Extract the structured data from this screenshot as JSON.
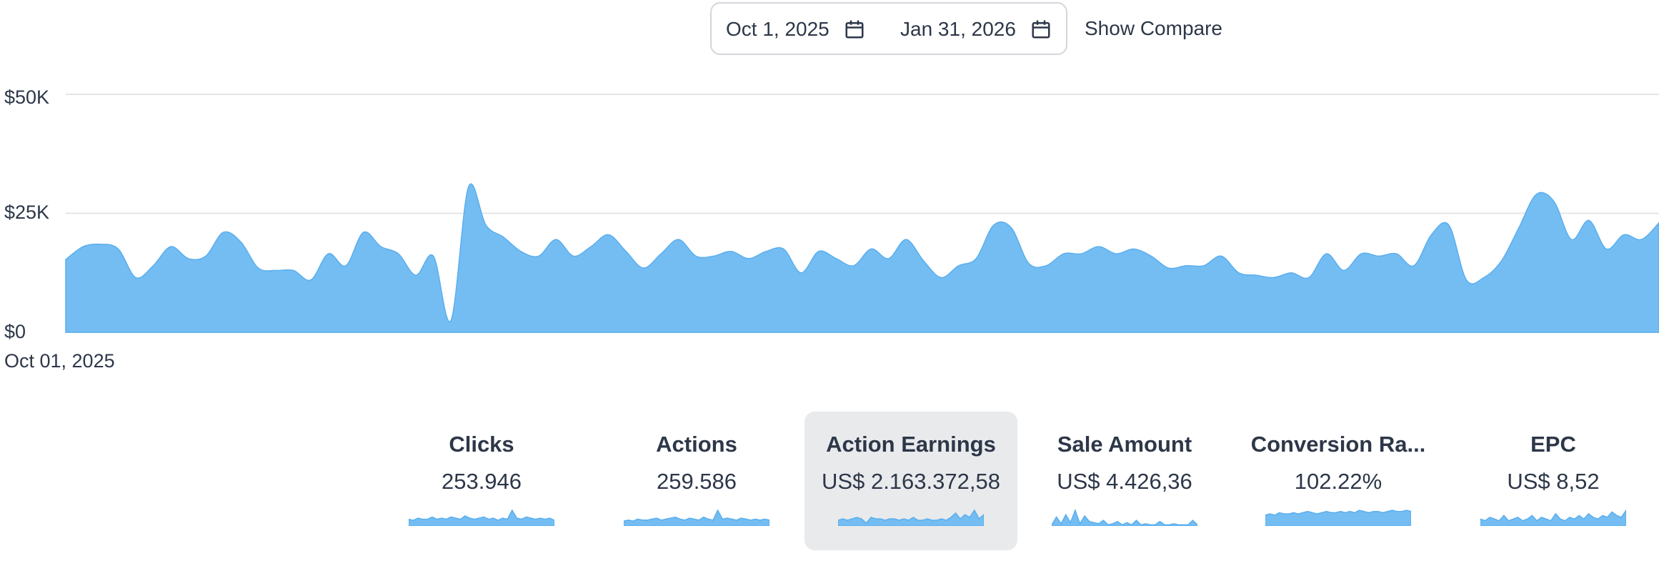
{
  "date_range": {
    "start": "Oct 1, 2025",
    "end": "Jan 31, 2026",
    "compare_label": "Show Compare"
  },
  "colors": {
    "fill": "#74bdf2",
    "stroke": "#5aaeee",
    "grid": "#e3e5e8",
    "active_card": "#e9eaec"
  },
  "chart_data": {
    "type": "area",
    "title": "",
    "xlabel": "",
    "ylabel": "",
    "x_tick_labels": [
      "Oct 01, 2025"
    ],
    "y_tick_labels": [
      "$0",
      "$25K",
      "$50K"
    ],
    "y_ticks": [
      0,
      25000,
      50000
    ],
    "ylim": [
      0,
      50000
    ],
    "grid": true,
    "series": [
      {
        "name": "Action Earnings",
        "unit": "K USD",
        "values": [
          15.3,
          18,
          18.5,
          17.5,
          11.5,
          14,
          18,
          15.5,
          16,
          21,
          19,
          13.5,
          13,
          13,
          11,
          16.5,
          14,
          21,
          18,
          16.5,
          12,
          16,
          2.5,
          30.5,
          22.5,
          20,
          17,
          16,
          19.5,
          16,
          18,
          20.5,
          17,
          13.5,
          16.5,
          19.5,
          16,
          16,
          17,
          15.5,
          17,
          17.5,
          12.5,
          17,
          15.5,
          14,
          17.5,
          15.5,
          19.5,
          15,
          11.5,
          14,
          15.5,
          22.5,
          22,
          14.5,
          14,
          16.5,
          16.5,
          18,
          16.5,
          17.5,
          16,
          13.5,
          14,
          14,
          16,
          12.5,
          12,
          11.5,
          12.5,
          11.5,
          16.5,
          13,
          16.5,
          16,
          16.5,
          14,
          20.5,
          22.5,
          11,
          11.5,
          15,
          22,
          29,
          27.5,
          19.5,
          23.5,
          17.5,
          20.5,
          19.5,
          23
        ]
      }
    ]
  },
  "metrics": [
    {
      "label": "Clicks",
      "value": "253.946",
      "active": false,
      "spark": [
        6,
        5,
        7,
        6,
        6,
        8,
        6,
        7,
        6,
        8,
        7,
        6,
        9,
        7,
        6,
        7,
        8,
        6,
        7,
        5,
        7,
        6,
        14,
        7,
        6,
        8,
        7,
        6,
        7,
        6,
        7,
        5
      ]
    },
    {
      "label": "Actions",
      "value": "259.586",
      "active": false,
      "spark": [
        5,
        6,
        5,
        7,
        6,
        6,
        7,
        8,
        6,
        7,
        8,
        9,
        7,
        6,
        8,
        7,
        6,
        9,
        7,
        6,
        16,
        7,
        8,
        7,
        6,
        8,
        7,
        6,
        7,
        6,
        7,
        6
      ]
    },
    {
      "label": "Action Earnings",
      "value": "US$ 2.163.372,58",
      "active": true,
      "spark": [
        4,
        5,
        4,
        5,
        6,
        5,
        2,
        6,
        5,
        5,
        4,
        5,
        5,
        4,
        5,
        4,
        6,
        4,
        4,
        5,
        4,
        4,
        5,
        4,
        6,
        9,
        5,
        8,
        6,
        11,
        5,
        8
      ]
    },
    {
      "label": "Sale Amount",
      "value": "US$ 4.426,36",
      "active": false,
      "spark": [
        1,
        8,
        2,
        10,
        3,
        14,
        2,
        9,
        4,
        3,
        2,
        5,
        1,
        2,
        4,
        1,
        3,
        1,
        5,
        1,
        2,
        1,
        1,
        4,
        1,
        1,
        2,
        1,
        1,
        1,
        5,
        1
      ]
    },
    {
      "label": "Conversion Ra...",
      "value": "102.22%",
      "active": false,
      "spark": [
        9,
        10,
        9,
        11,
        10,
        10,
        11,
        10,
        11,
        12,
        11,
        10,
        11,
        12,
        11,
        11,
        12,
        11,
        12,
        11,
        13,
        12,
        11,
        12,
        12,
        11,
        12,
        13,
        12,
        12,
        13,
        12
      ]
    },
    {
      "label": "EPC",
      "value": "US$ 8,52",
      "active": false,
      "spark": [
        4,
        3,
        5,
        4,
        3,
        6,
        3,
        4,
        5,
        3,
        4,
        6,
        3,
        5,
        4,
        3,
        7,
        4,
        3,
        5,
        4,
        6,
        4,
        7,
        5,
        4,
        6,
        5,
        8,
        6,
        5,
        9
      ]
    }
  ]
}
